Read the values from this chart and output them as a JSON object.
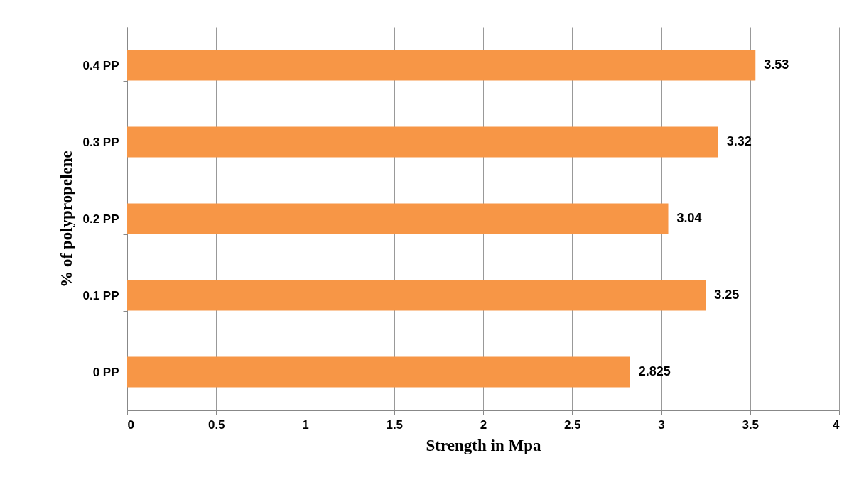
{
  "chart_data": {
    "type": "bar",
    "orientation": "horizontal",
    "xlabel": "Strength in Mpa",
    "ylabel": "% of polypropelene",
    "categories": [
      "0.4 PP",
      "0.3 PP",
      "0.2 PP",
      "0.1 PP",
      "0 PP"
    ],
    "values": [
      3.53,
      3.32,
      3.04,
      3.25,
      2.825
    ],
    "color": "#f79646",
    "xlim": [
      0,
      4
    ],
    "xticks": [
      0,
      0.5,
      1,
      1.5,
      2,
      2.5,
      3,
      3.5,
      4
    ],
    "grid": "x",
    "data_labels": true
  }
}
